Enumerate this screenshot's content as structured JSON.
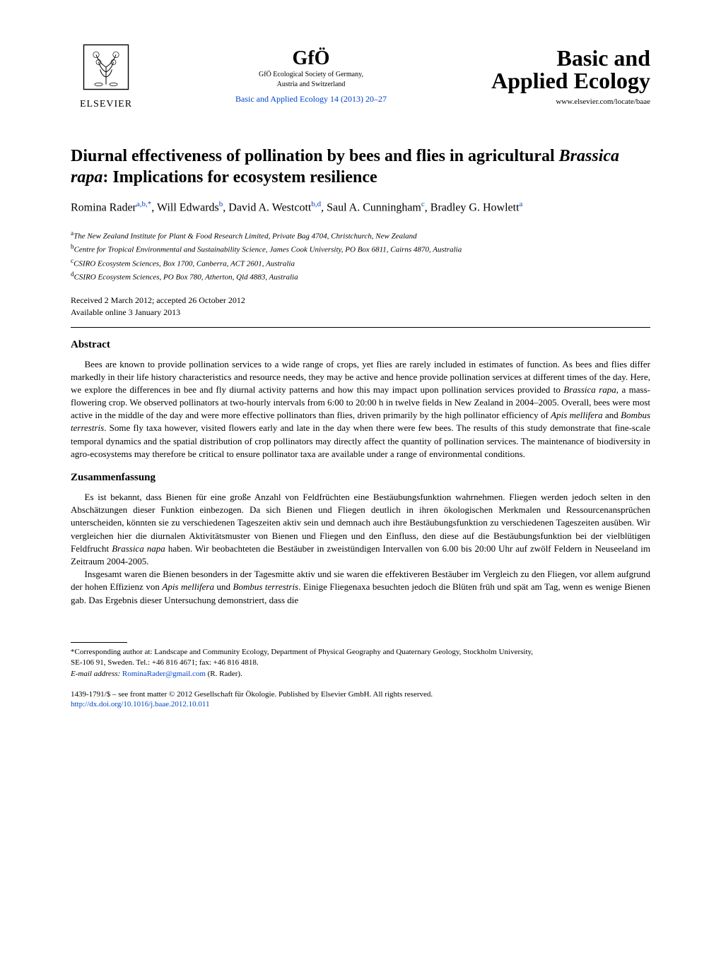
{
  "header": {
    "publisher_name": "ELSEVIER",
    "society_logo_text": "GfÖ",
    "society_name_line1": "GfÖ Ecological Society of Germany,",
    "society_name_line2": "Austria and Switzerland",
    "journal_ref": "Basic and Applied Ecology 14 (2013) 20–27",
    "journal_title_line1": "Basic and",
    "journal_title_line2": "Applied Ecology",
    "journal_url": "www.elsevier.com/locate/baae"
  },
  "article": {
    "title_html": "Diurnal effectiveness of pollination by bees and flies in agricultural <em>Brassica rapa</em>: Implications for ecosystem resilience",
    "authors_html": "Romina Rader<sup>a,b,*</sup>, Will Edwards<sup>b</sup>, David A. Westcott<sup>b,d</sup>, Saul A. Cunningham<sup>c</sup>, Bradley G. Howlett<sup>a</sup>",
    "affiliations": {
      "a": "The New Zealand Institute for Plant & Food Research Limited, Private Bag 4704, Christchurch, New Zealand",
      "b": "Centre for Tropical Environmental and Sustainability Science, James Cook University, PO Box 6811, Cairns 4870, Australia",
      "c": "CSIRO Ecosystem Sciences, Box 1700, Canberra, ACT 2601, Australia",
      "d": "CSIRO Ecosystem Sciences, PO Box 780, Atherton, Qld 4883, Australia"
    },
    "dates_line1": "Received 2 March 2012; accepted 26 October 2012",
    "dates_line2": "Available online 3 January 2013"
  },
  "abstract": {
    "heading": "Abstract",
    "text_html": "Bees are known to provide pollination services to a wide range of crops, yet flies are rarely included in estimates of function. As bees and flies differ markedly in their life history characteristics and resource needs, they may be active and hence provide pollination services at different times of the day. Here, we explore the differences in bee and fly diurnal activity patterns and how this may impact upon pollination services provided to <em>Brassica rapa</em>, a mass-flowering crop. We observed pollinators at two-hourly intervals from 6:00 to 20:00 h in twelve fields in New Zealand in 2004–2005. Overall, bees were most active in the middle of the day and were more effective pollinators than flies, driven primarily by the high pollinator efficiency of <em>Apis mellifera</em> and <em>Bombus terrestris</em>. Some fly taxa however, visited flowers early and late in the day when there were few bees. The results of this study demonstrate that fine-scale temporal dynamics and the spatial distribution of crop pollinators may directly affect the quantity of pollination services. The maintenance of biodiversity in agro-ecosystems may therefore be critical to ensure pollinator taxa are available under a range of environmental conditions."
  },
  "zusammenfassung": {
    "heading": "Zusammenfassung",
    "para1_html": "Es ist bekannt, dass Bienen für eine große Anzahl von Feldfrüchten eine Bestäubungsfunktion wahrnehmen. Fliegen werden jedoch selten in den Abschätzungen dieser Funktion einbezogen. Da sich Bienen und Fliegen deutlich in ihren ökologischen Merkmalen und Ressourcenansprüchen unterscheiden, könnten sie zu verschiedenen Tageszeiten aktiv sein und demnach auch ihre Bestäubungsfunktion zu verschiedenen Tageszeiten ausüben. Wir vergleichen hier die diurnalen Aktivitätsmuster von Bienen und Fliegen und den Einfluss, den diese auf die Bestäubungsfunktion bei der vielblütigen Feldfrucht <em>Brassica napa</em> haben. Wir beobachteten die Bestäuber in zweistündigen Intervallen von 6.00 bis 20:00 Uhr auf zwölf Feldern in Neuseeland im Zeitraum 2004-2005.",
    "para2_html": "Insgesamt waren die Bienen besonders in der Tagesmitte aktiv und sie waren die effektiveren Bestäuber im Vergleich zu den Fliegen, vor allem aufgrund der hohen Effizienz von <em>Apis mellifera</em> und <em>Bombus terrestris</em>. Einige Fliegenaxa besuchten jedoch die Blüten früh und spät am Tag, wenn es wenige Bienen gab. Das Ergebnis dieser Untersuchung demonstriert, dass die"
  },
  "footer": {
    "corresponding_line1": "*Corresponding author at: Landscape and Community Ecology, Department of Physical Geography and Quaternary Geology, Stockholm University,",
    "corresponding_line2": "SE-106 91, Sweden. Tel.: +46 816 4671; fax: +46 816 4818.",
    "email_label": "E-mail address:",
    "email": "RominaRader@gmail.com",
    "email_suffix": " (R. Rader).",
    "copyright": "1439-1791/$ – see front matter © 2012 Gesellschaft für Ökologie. Published by Elsevier GmbH. All rights reserved.",
    "doi": "http://dx.doi.org/10.1016/j.baae.2012.10.011"
  }
}
